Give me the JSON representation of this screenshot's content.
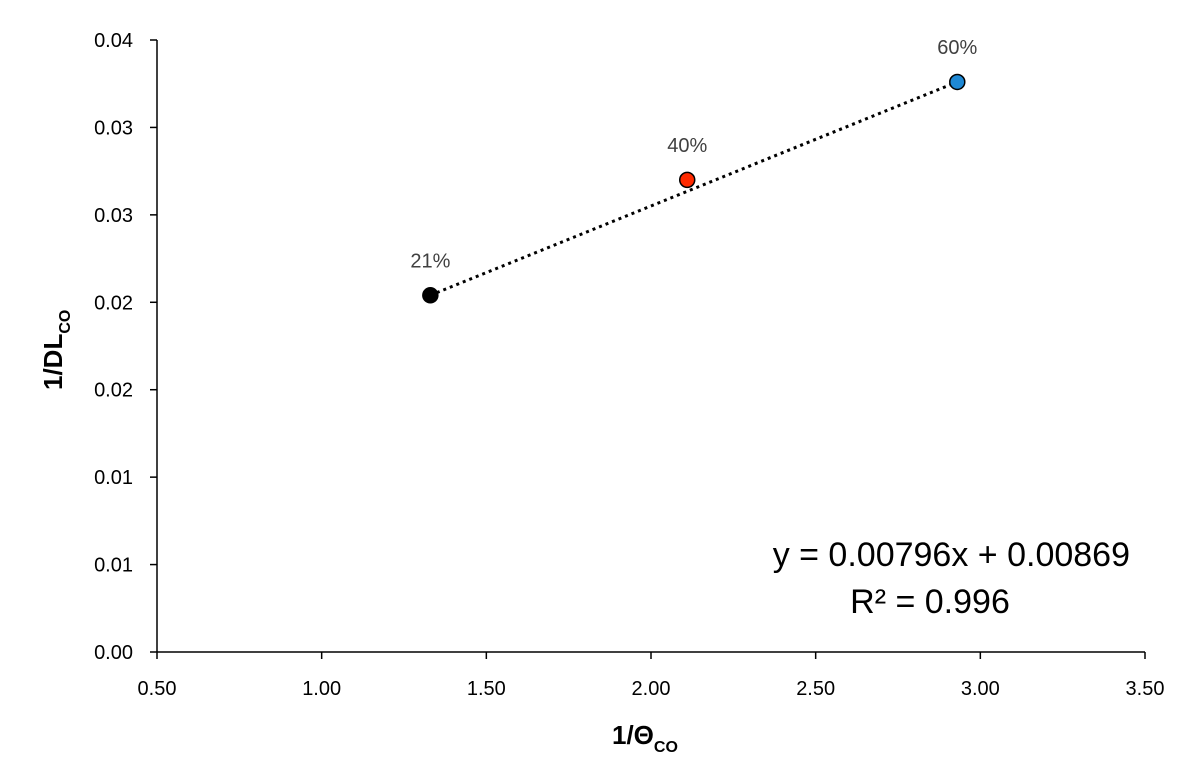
{
  "chart_data": {
    "type": "scatter",
    "title": "",
    "xlabel": {
      "main": "1/Θ",
      "sub": "CO"
    },
    "ylabel": {
      "main": "1/DL",
      "sub": "CO"
    },
    "xlim": [
      0.5,
      3.5
    ],
    "ylim": [
      0.0,
      0.035
    ],
    "x_ticks": [
      {
        "value": 0.5,
        "label": "0.50"
      },
      {
        "value": 1.0,
        "label": "1.00"
      },
      {
        "value": 1.5,
        "label": "1.50"
      },
      {
        "value": 2.0,
        "label": "2.00"
      },
      {
        "value": 2.5,
        "label": "2.50"
      },
      {
        "value": 3.0,
        "label": "3.00"
      },
      {
        "value": 3.5,
        "label": "3.50"
      }
    ],
    "y_ticks": [
      {
        "value": 0.0,
        "label": "0.00"
      },
      {
        "value": 0.005,
        "label": "0.01"
      },
      {
        "value": 0.01,
        "label": "0.01"
      },
      {
        "value": 0.015,
        "label": "0.02"
      },
      {
        "value": 0.02,
        "label": "0.02"
      },
      {
        "value": 0.025,
        "label": "0.03"
      },
      {
        "value": 0.03,
        "label": "0.03"
      },
      {
        "value": 0.035,
        "label": "0.04"
      }
    ],
    "grid": false,
    "points": [
      {
        "x": 1.33,
        "y": 0.0204,
        "label": "21%",
        "color": "#000000"
      },
      {
        "x": 2.11,
        "y": 0.027,
        "label": "40%",
        "color": "#ff2a00"
      },
      {
        "x": 2.93,
        "y": 0.0326,
        "label": "60%",
        "color": "#1e88d4"
      }
    ],
    "trendline": {
      "type": "linear",
      "slope": 0.00796,
      "intercept": 0.00869,
      "style": "dotted",
      "color": "#000000",
      "x_range": [
        1.33,
        2.93
      ]
    },
    "annotation": {
      "equation": "y = 0.00796x  + 0.00869",
      "r_squared": "R² = 0.996",
      "placement": "bottom-right"
    }
  }
}
